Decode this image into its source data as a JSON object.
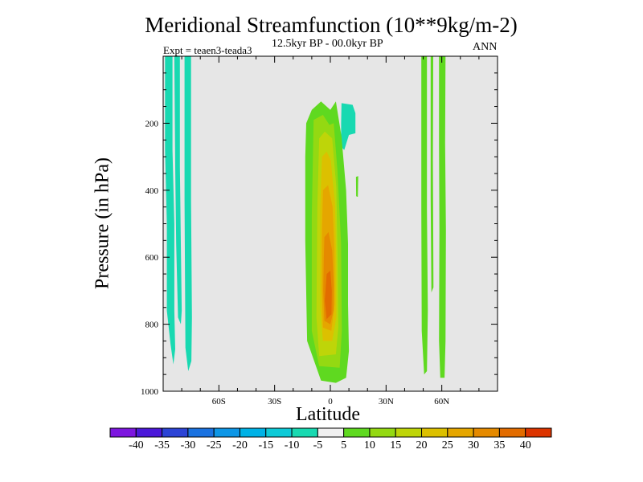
{
  "chart_data": {
    "type": "heatmap",
    "title": "Meridional Streamfunction (10**9kg/m-2)",
    "subtitle": "12.5kyr BP - 00.0kyr BP",
    "left_label": "Expt = teaen3-teada3",
    "right_label": "ANN",
    "xlabel": "Latitude",
    "ylabel": "Pressure (in hPa)",
    "xlim": [
      -90,
      90
    ],
    "ylim": [
      0,
      1000
    ],
    "y_inverted": true,
    "x_ticks": [
      {
        "value": -60,
        "label": "60S"
      },
      {
        "value": -30,
        "label": "30S"
      },
      {
        "value": 0,
        "label": "0"
      },
      {
        "value": 30,
        "label": "30N"
      },
      {
        "value": 60,
        "label": "60N"
      }
    ],
    "y_ticks": [
      {
        "value": 200,
        "label": "200"
      },
      {
        "value": 400,
        "label": "400"
      },
      {
        "value": 600,
        "label": "600"
      },
      {
        "value": 800,
        "label": "800"
      },
      {
        "value": 1000,
        "label": "1000"
      }
    ],
    "background_color": "#e6e6e6",
    "colorbar": {
      "levels": [
        "-40",
        "-35",
        "-30",
        "-25",
        "-20",
        "-15",
        "-10",
        "-5",
        "5",
        "10",
        "15",
        "20",
        "25",
        "30",
        "35",
        "40"
      ],
      "colors": [
        "#7d16df",
        "#4b18d9",
        "#2c44d6",
        "#1a72e0",
        "#0d96e6",
        "#00b2e6",
        "#0ecad7",
        "#18d9b1",
        "#f0f0f0",
        "#5fd920",
        "#94d912",
        "#bed509",
        "#dcc000",
        "#e5a600",
        "#e58a00",
        "#e26c00",
        "#dc3400"
      ]
    },
    "regions": [
      {
        "level": -10,
        "color": "#18d9b1",
        "points": [
          [
            -89,
            0
          ],
          [
            -85,
            0
          ],
          [
            -85,
            280
          ],
          [
            -84,
            500
          ],
          [
            -84,
            760
          ],
          [
            -83.5,
            875
          ],
          [
            -84.5,
            920
          ],
          [
            -86,
            860
          ],
          [
            -88,
            760
          ],
          [
            -88,
            500
          ],
          [
            -89,
            280
          ]
        ]
      },
      {
        "level": -10,
        "color": "#18d9b1",
        "points": [
          [
            -84,
            0
          ],
          [
            -81,
            0
          ],
          [
            -81,
            330
          ],
          [
            -80.5,
            560
          ],
          [
            -80,
            760
          ],
          [
            -80.5,
            800
          ],
          [
            -82,
            780
          ],
          [
            -83,
            560
          ],
          [
            -83.5,
            330
          ]
        ]
      },
      {
        "level": -10,
        "color": "#18d9b1",
        "points": [
          [
            -78.5,
            0
          ],
          [
            -75,
            0
          ],
          [
            -75,
            430
          ],
          [
            -74.5,
            780
          ],
          [
            -74.8,
            910
          ],
          [
            -76.5,
            940
          ],
          [
            -78,
            870
          ],
          [
            -78.5,
            430
          ]
        ]
      },
      {
        "level": -10,
        "color": "#18d9b1",
        "points": [
          [
            6,
            140
          ],
          [
            12,
            145
          ],
          [
            13.5,
            170
          ],
          [
            13.5,
            230
          ],
          [
            10,
            235
          ],
          [
            7.5,
            280
          ],
          [
            5.8,
            270
          ],
          [
            5.8,
            200
          ]
        ]
      },
      {
        "level": 5,
        "color": "#5fd920",
        "points": [
          [
            -13,
            200
          ],
          [
            -10,
            160
          ],
          [
            -5,
            135
          ],
          [
            0,
            160
          ],
          [
            3,
            135
          ],
          [
            6,
            240
          ],
          [
            8.5,
            400
          ],
          [
            9.5,
            560
          ],
          [
            9.5,
            740
          ],
          [
            10,
            880
          ],
          [
            8.5,
            960
          ],
          [
            3,
            975
          ],
          [
            -5,
            968
          ],
          [
            -12.5,
            850
          ],
          [
            -13.5,
            550
          ],
          [
            -13.5,
            300
          ]
        ]
      },
      {
        "level": 5,
        "color": "#5fd920",
        "points": [
          [
            13.8,
            360
          ],
          [
            15,
            358
          ],
          [
            14.8,
            420
          ],
          [
            13.9,
            418
          ]
        ]
      },
      {
        "level": 5,
        "color": "#5fd920",
        "points": [
          [
            49,
            0
          ],
          [
            52,
            0
          ],
          [
            52,
            460
          ],
          [
            52.5,
            760
          ],
          [
            52,
            940
          ],
          [
            50.5,
            950
          ],
          [
            49.2,
            820
          ],
          [
            49,
            460
          ]
        ]
      },
      {
        "level": 5,
        "color": "#5fd920",
        "points": [
          [
            54,
            0
          ],
          [
            55.4,
            0
          ],
          [
            55.2,
            310
          ],
          [
            55.5,
            690
          ],
          [
            54.4,
            705
          ],
          [
            54,
            420
          ]
        ]
      },
      {
        "level": 5,
        "color": "#5fd920",
        "points": [
          [
            58.5,
            0
          ],
          [
            62,
            0
          ],
          [
            61.8,
            260
          ],
          [
            62.2,
            520
          ],
          [
            62,
            850
          ],
          [
            61.5,
            960
          ],
          [
            59.2,
            960
          ],
          [
            58.5,
            850
          ],
          [
            58.7,
            520
          ],
          [
            58.5,
            260
          ]
        ]
      },
      {
        "level": 10,
        "color": "#94d912",
        "points": [
          [
            -9,
            190
          ],
          [
            -4,
            175
          ],
          [
            -0.5,
            205
          ],
          [
            1.8,
            200
          ],
          [
            3.8,
            340
          ],
          [
            5.8,
            560
          ],
          [
            6.2,
            820
          ],
          [
            5,
            930
          ],
          [
            -6,
            925
          ],
          [
            -10,
            820
          ],
          [
            -10,
            480
          ]
        ]
      },
      {
        "level": 15,
        "color": "#bed509",
        "points": [
          [
            -6,
            245
          ],
          [
            -3,
            225
          ],
          [
            1,
            245
          ],
          [
            3.2,
            390
          ],
          [
            4,
            620
          ],
          [
            4.3,
            810
          ],
          [
            3,
            890
          ],
          [
            -6,
            895
          ],
          [
            -7.5,
            780
          ],
          [
            -7,
            450
          ]
        ]
      },
      {
        "level": 20,
        "color": "#dcc000",
        "points": [
          [
            -4.5,
            300
          ],
          [
            -2,
            285
          ],
          [
            0.2,
            310
          ],
          [
            2.5,
            440
          ],
          [
            3.2,
            620
          ],
          [
            3.2,
            780
          ],
          [
            1,
            850
          ],
          [
            -4,
            850
          ],
          [
            -5.5,
            750
          ],
          [
            -5.5,
            460
          ]
        ]
      },
      {
        "level": 25,
        "color": "#e5a600",
        "points": [
          [
            -4,
            400
          ],
          [
            -1.2,
            385
          ],
          [
            1.2,
            450
          ],
          [
            2.2,
            580
          ],
          [
            2.4,
            740
          ],
          [
            0.5,
            820
          ],
          [
            -4,
            810
          ],
          [
            -4.6,
            700
          ],
          [
            -4.5,
            520
          ]
        ]
      },
      {
        "level": 30,
        "color": "#e58a00",
        "points": [
          [
            -3.2,
            540
          ],
          [
            -1,
            525
          ],
          [
            1,
            580
          ],
          [
            1.8,
            680
          ],
          [
            1.7,
            760
          ],
          [
            0,
            800
          ],
          [
            -3.2,
            790
          ],
          [
            -3.8,
            700
          ],
          [
            -3.5,
            600
          ]
        ]
      },
      {
        "level": 35,
        "color": "#e26c00",
        "points": [
          [
            -2,
            650
          ],
          [
            0,
            640
          ],
          [
            0.8,
            700
          ],
          [
            0.6,
            770
          ],
          [
            -2,
            785
          ],
          [
            -3,
            730
          ]
        ]
      }
    ]
  }
}
